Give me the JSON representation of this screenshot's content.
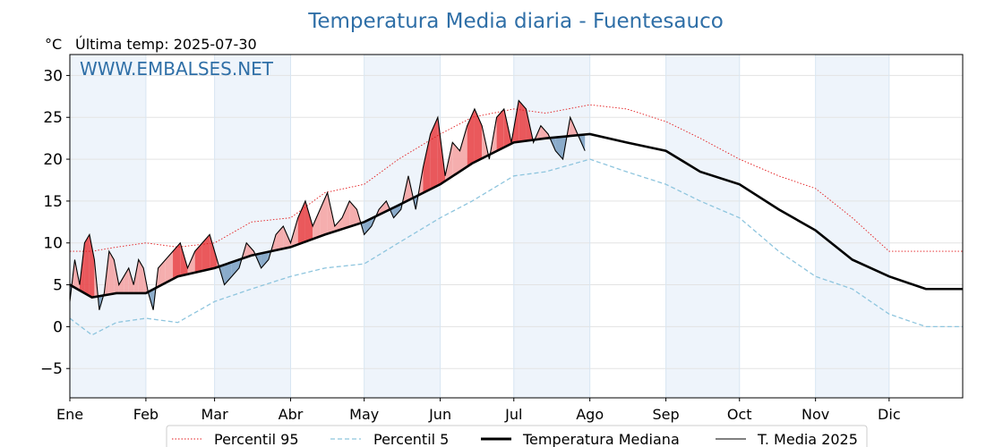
{
  "chart_data": {
    "type": "line",
    "title": "Temperatura Media diaria - Fuentesauco",
    "unit_label": "°C",
    "subtitle": "Última temp: 2025-07-30",
    "watermark": "WWW.EMBALSES.NET",
    "xlim": [
      1,
      365
    ],
    "ylim": [
      -8.5,
      32.5
    ],
    "yticks": [
      -5,
      0,
      5,
      10,
      15,
      20,
      25,
      30
    ],
    "ytick_labels": [
      "−5",
      "0",
      "5",
      "10",
      "15",
      "20",
      "25",
      "30"
    ],
    "months": [
      {
        "label": "Ene",
        "day": 1
      },
      {
        "label": "Feb",
        "day": 32
      },
      {
        "label": "Mar",
        "day": 60
      },
      {
        "label": "Abr",
        "day": 91
      },
      {
        "label": "May",
        "day": 121
      },
      {
        "label": "Jun",
        "day": 152
      },
      {
        "label": "Jul",
        "day": 182
      },
      {
        "label": "Ago",
        "day": 213
      },
      {
        "label": "Sep",
        "day": 244
      },
      {
        "label": "Oct",
        "day": 274
      },
      {
        "label": "Nov",
        "day": 305
      },
      {
        "label": "Dic",
        "day": 335
      }
    ],
    "grid": true,
    "legend_position": "bottom",
    "colors": {
      "p95": "#e31a1c",
      "p5": "#8ec5de",
      "median": "#000000",
      "media2025": "#000000",
      "above_fill": "#f4a5a5",
      "above_fill_strong": "#e8474a",
      "below_fill": "#7ea3c4",
      "band": "#eef4fb",
      "title": "#2f6fa7",
      "watermark": "#2f6fa7"
    },
    "series": [
      {
        "name": "Percentil 95",
        "style": "dotted",
        "x": [
          1,
          10,
          20,
          32,
          45,
          60,
          75,
          91,
          105,
          121,
          135,
          152,
          165,
          182,
          195,
          213,
          228,
          244,
          258,
          274,
          290,
          305,
          320,
          335,
          350,
          365
        ],
        "y": [
          9,
          9,
          9.5,
          10,
          9.5,
          10,
          12.5,
          13,
          16,
          17,
          20,
          23,
          25,
          26,
          25.5,
          26.5,
          26,
          24.5,
          22.5,
          20,
          18,
          16.5,
          13,
          9,
          9,
          9
        ]
      },
      {
        "name": "Percentil 5",
        "style": "dashed",
        "x": [
          1,
          10,
          20,
          32,
          45,
          60,
          75,
          91,
          105,
          121,
          135,
          152,
          165,
          182,
          195,
          213,
          228,
          244,
          258,
          274,
          290,
          305,
          320,
          335,
          350,
          365
        ],
        "y": [
          1,
          -1,
          0.5,
          1,
          0.5,
          3,
          4.5,
          6,
          7,
          7.5,
          10,
          13,
          15,
          18,
          18.5,
          20,
          18.5,
          17,
          15,
          13,
          9,
          6,
          4.5,
          1.5,
          0,
          0
        ]
      },
      {
        "name": "Temperatura Mediana",
        "style": "bold",
        "x": [
          1,
          10,
          20,
          32,
          45,
          60,
          75,
          91,
          105,
          121,
          135,
          152,
          165,
          182,
          195,
          213,
          228,
          244,
          258,
          274,
          290,
          305,
          320,
          335,
          350,
          365
        ],
        "y": [
          5,
          3.5,
          4,
          4,
          6,
          7,
          8.5,
          9.5,
          11,
          12.5,
          14.5,
          17,
          19.5,
          22,
          22.5,
          23,
          22,
          21,
          18.5,
          17,
          14,
          11.5,
          8,
          6,
          4.5,
          4.5
        ]
      },
      {
        "name": "T. Media 2025",
        "style": "solid",
        "x": [
          1,
          3,
          5,
          7,
          9,
          11,
          13,
          15,
          17,
          19,
          21,
          23,
          25,
          27,
          29,
          31,
          33,
          35,
          37,
          40,
          43,
          46,
          49,
          52,
          55,
          58,
          61,
          64,
          67,
          70,
          73,
          76,
          79,
          82,
          85,
          88,
          91,
          94,
          97,
          100,
          103,
          106,
          109,
          112,
          115,
          118,
          121,
          124,
          127,
          130,
          133,
          136,
          139,
          142,
          145,
          148,
          151,
          154,
          157,
          160,
          163,
          166,
          169,
          172,
          175,
          178,
          181,
          184,
          187,
          190,
          193,
          196,
          199,
          202,
          205,
          208,
          211
        ],
        "y": [
          3,
          8,
          5,
          10,
          11,
          8,
          2,
          4,
          9,
          8,
          5,
          6,
          7,
          5,
          8,
          7,
          4,
          2,
          7,
          8,
          9,
          10,
          7,
          9,
          10,
          11,
          8,
          5,
          6,
          7,
          10,
          9,
          7,
          8,
          11,
          12,
          10,
          13,
          15,
          12,
          14,
          16,
          12,
          13,
          15,
          14,
          11,
          12,
          14,
          15,
          13,
          14,
          18,
          14,
          19,
          23,
          25,
          18,
          22,
          21,
          24,
          26,
          24,
          20,
          25,
          26,
          22,
          27,
          26,
          22,
          24,
          23,
          21,
          20,
          25,
          23,
          21
        ]
      }
    ]
  },
  "legend": {
    "items": [
      "Percentil 95",
      "Percentil 5",
      "Temperatura Mediana",
      "T. Media 2025"
    ]
  }
}
